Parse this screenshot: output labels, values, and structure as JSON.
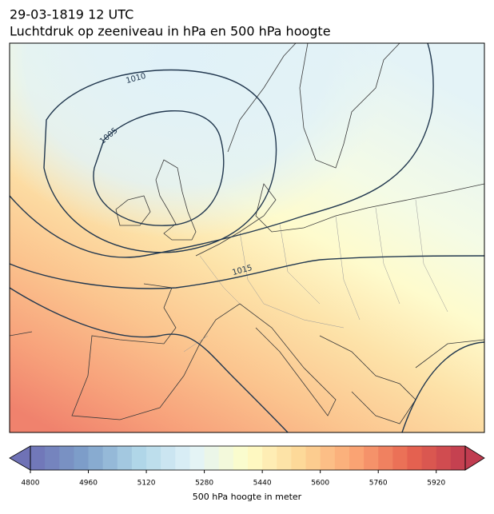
{
  "title": {
    "line1": "29-03-1819 12 UTC",
    "line2": "Luchtdruk op zeeniveau in hPa en 500 hPa hoogte"
  },
  "map": {
    "contour_labels": [
      "1010",
      "1005",
      "1015"
    ]
  },
  "colorbar": {
    "label": "500 hPa hoogte in meter",
    "lim": [
      4800,
      6000
    ],
    "ticks": [
      4800,
      4960,
      5120,
      5280,
      5440,
      5600,
      5760,
      5920
    ]
  }
}
